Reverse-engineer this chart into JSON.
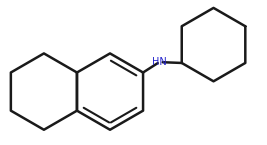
{
  "bg_color": "#ffffff",
  "line_color": "#1a1a1a",
  "line_width": 1.8,
  "nh_color": "#2222cc",
  "nh_text": "HN",
  "figsize": [
    2.67,
    1.45
  ],
  "dpi": 100
}
